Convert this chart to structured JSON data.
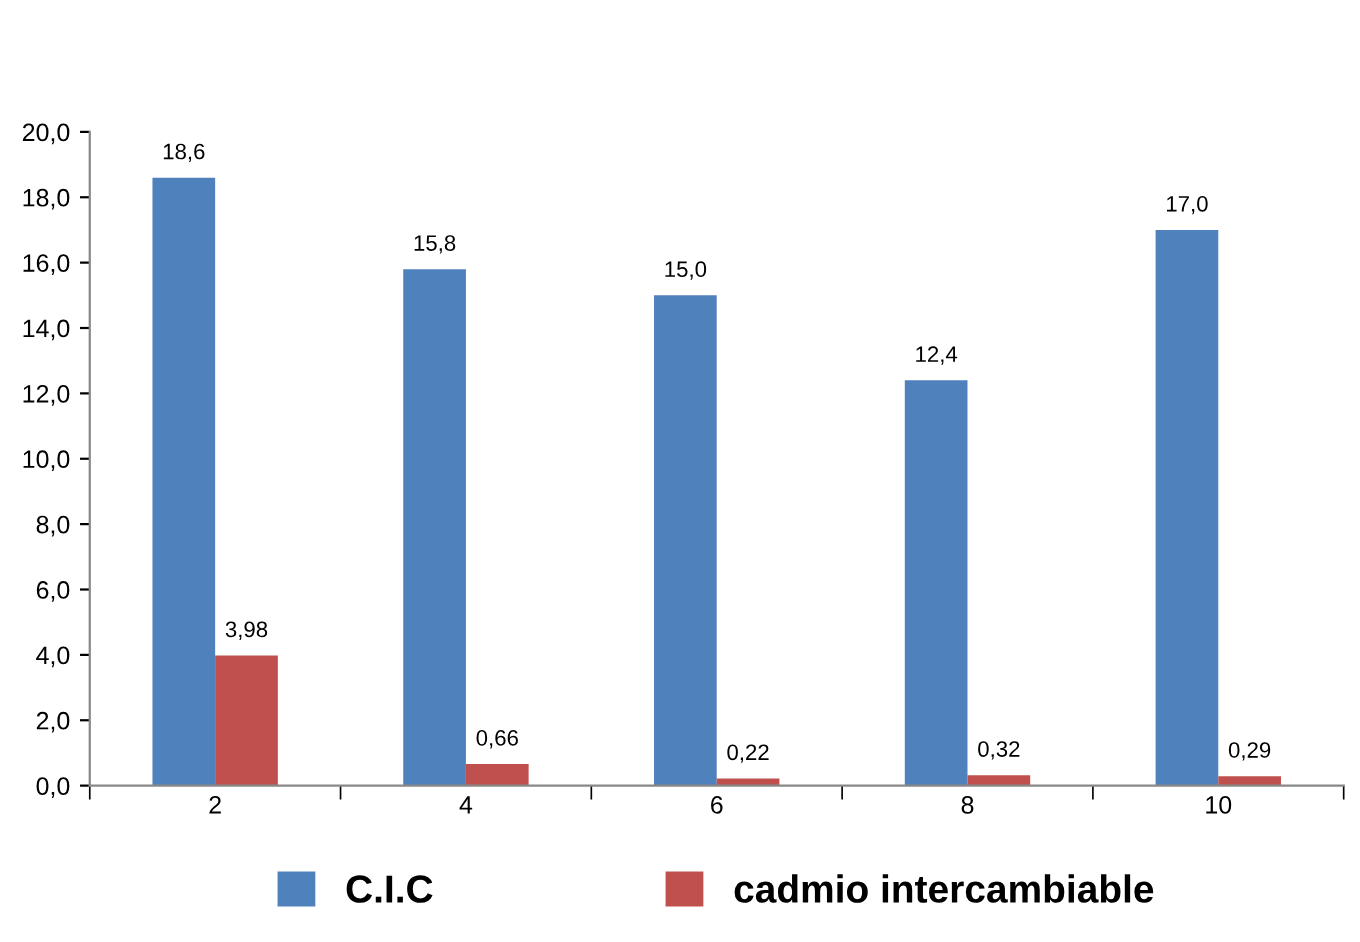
{
  "chart_data": {
    "type": "bar",
    "categories": [
      "2",
      "4",
      "6",
      "8",
      "10"
    ],
    "series": [
      {
        "name": "C.I.C",
        "color": "#4f81bd",
        "values": [
          18.6,
          15.8,
          15.0,
          12.4,
          17.0
        ],
        "value_labels": [
          "18,6",
          "15,8",
          "15,0",
          "12,4",
          "17,0"
        ]
      },
      {
        "name": "cadmio intercambiable",
        "color": "#c0504d",
        "values": [
          3.98,
          0.66,
          0.22,
          0.32,
          0.29
        ],
        "value_labels": [
          "3,98",
          "0,66",
          "0,22",
          "0,32",
          "0,29"
        ]
      }
    ],
    "ylim": [
      0,
      20
    ],
    "yticks": [
      {
        "value": 0,
        "label": "0,0"
      },
      {
        "value": 2,
        "label": "2,0"
      },
      {
        "value": 4,
        "label": "4,0"
      },
      {
        "value": 6,
        "label": "6,0"
      },
      {
        "value": 8,
        "label": "8,0"
      },
      {
        "value": 10,
        "label": "10,0"
      },
      {
        "value": 12,
        "label": "12,0"
      },
      {
        "value": 14,
        "label": "14,0"
      },
      {
        "value": 16,
        "label": "16,0"
      },
      {
        "value": 18,
        "label": "18,0"
      },
      {
        "value": 20,
        "label": "20,0"
      }
    ],
    "grid": false,
    "legend": "bottom"
  }
}
